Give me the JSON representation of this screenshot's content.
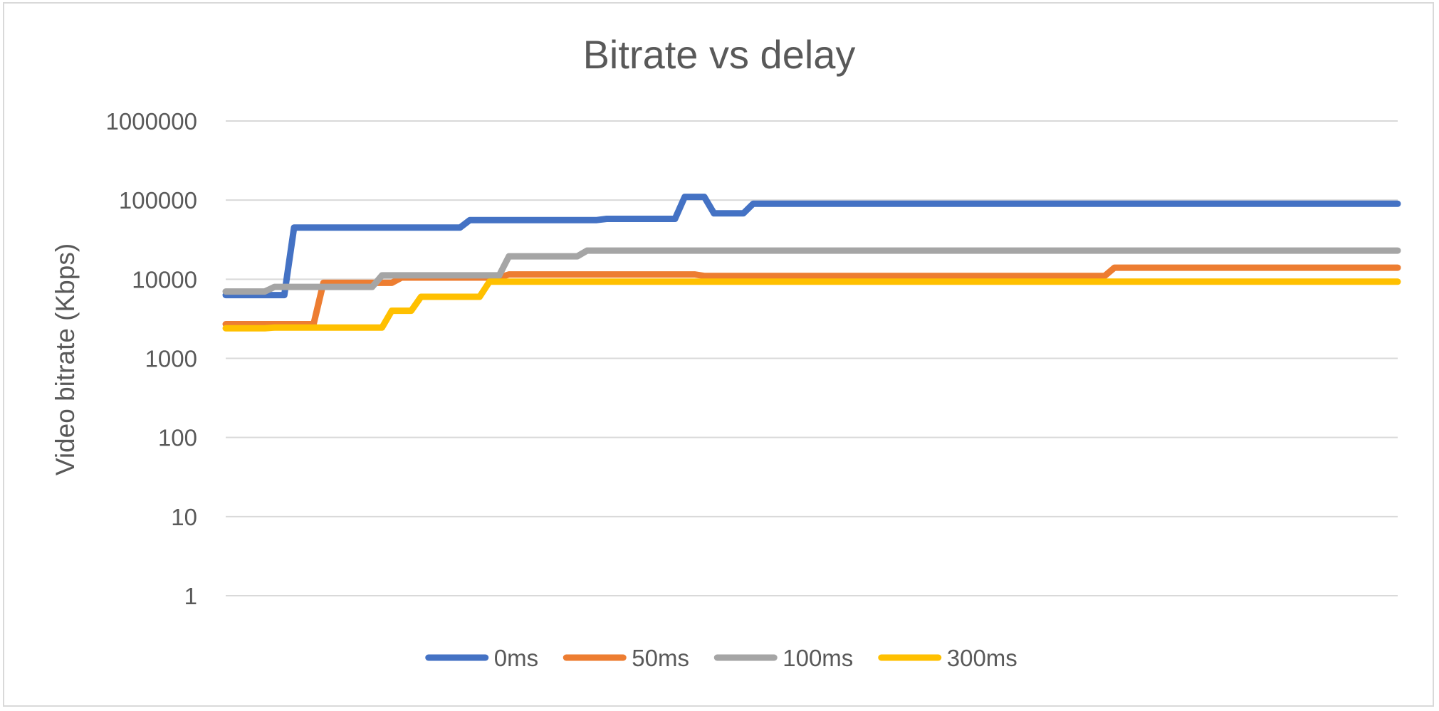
{
  "chart_data": {
    "type": "line",
    "title": "Bitrate vs delay",
    "xlabel": "",
    "ylabel": "Video bitrate (Kbps)",
    "y_scale": "log",
    "ylim": [
      1,
      1000000
    ],
    "y_ticks": [
      "1",
      "10",
      "100",
      "1000",
      "10000",
      "100000",
      "1000000"
    ],
    "x_axis_labels": "none",
    "grid": true,
    "legend_position": "bottom",
    "x": [
      0,
      1,
      2,
      3,
      4,
      5,
      6,
      7,
      8,
      9,
      10,
      11,
      12,
      13,
      14,
      15,
      16,
      17,
      18,
      19,
      20,
      21,
      22,
      23,
      24,
      25,
      26,
      27,
      28,
      29,
      30,
      31,
      32,
      33,
      34,
      35,
      36,
      37,
      38,
      39,
      40,
      41,
      42,
      43,
      44,
      45,
      46,
      47,
      48,
      49,
      50,
      51,
      52,
      53,
      54,
      55,
      56,
      57,
      58,
      59,
      60,
      61,
      62,
      63,
      64,
      65,
      66,
      67,
      68,
      69,
      70,
      71,
      72,
      73,
      74,
      75,
      76,
      77,
      78,
      79,
      80,
      81,
      82,
      83,
      84,
      85,
      86,
      87,
      88,
      89,
      90,
      91,
      92,
      93,
      94,
      95,
      96,
      97,
      98,
      99,
      100,
      101,
      102,
      103,
      104,
      105,
      106,
      107,
      108,
      109,
      110,
      111,
      112,
      113,
      114,
      115,
      116,
      117,
      118,
      119,
      120
    ],
    "series": [
      {
        "name": "0ms",
        "color": "#4472c4",
        "values": [
          6300,
          6300,
          6300,
          6300,
          6300,
          6300,
          6300,
          45000,
          45000,
          45000,
          45000,
          45000,
          45000,
          45000,
          45000,
          45000,
          45000,
          45000,
          45000,
          45000,
          45000,
          45000,
          45000,
          45000,
          45000,
          56000,
          56000,
          56000,
          56000,
          56000,
          56000,
          56000,
          56000,
          56000,
          56000,
          56000,
          56000,
          56000,
          56000,
          58000,
          58000,
          58000,
          58000,
          58000,
          58000,
          58000,
          58000,
          110000,
          110000,
          110000,
          68000,
          68000,
          68000,
          68000,
          90000,
          90000,
          90000,
          90000,
          90000,
          90000,
          90000,
          90000,
          90000,
          90000,
          90000,
          90000,
          90000,
          90000,
          90000,
          90000,
          90000,
          90000,
          90000,
          90000,
          90000,
          90000,
          90000,
          90000,
          90000,
          90000,
          90000,
          90000,
          90000,
          90000,
          90000,
          90000,
          90000,
          90000,
          90000,
          90000,
          90000,
          90000,
          90000,
          90000,
          90000,
          90000,
          90000,
          90000,
          90000,
          90000,
          90000,
          90000,
          90000,
          90000,
          90000,
          90000,
          90000,
          90000,
          90000,
          90000,
          90000,
          90000,
          90000,
          90000,
          90000,
          90000,
          90000,
          90000,
          90000,
          90000,
          90000
        ]
      },
      {
        "name": "50ms",
        "color": "#ed7d31",
        "values": [
          2700,
          2700,
          2700,
          2700,
          2700,
          2700,
          2700,
          2700,
          2700,
          2700,
          9000,
          9000,
          9000,
          9000,
          9000,
          9000,
          9000,
          9000,
          10500,
          10500,
          10500,
          10500,
          10500,
          10500,
          10500,
          10500,
          10500,
          10500,
          10500,
          11500,
          11500,
          11500,
          11500,
          11500,
          11500,
          11500,
          11500,
          11500,
          11500,
          11500,
          11500,
          11500,
          11500,
          11500,
          11500,
          11500,
          11500,
          11500,
          11500,
          11000,
          11000,
          11000,
          11000,
          11000,
          11000,
          11000,
          11000,
          11000,
          11000,
          11000,
          11000,
          11000,
          11000,
          11000,
          11000,
          11000,
          11000,
          11000,
          11000,
          11000,
          11000,
          11000,
          11000,
          11000,
          11000,
          11000,
          11000,
          11000,
          11000,
          11000,
          11000,
          11000,
          11000,
          11000,
          11000,
          11000,
          11000,
          11000,
          11000,
          11000,
          11000,
          14000,
          14000,
          14000,
          14000,
          14000,
          14000,
          14000,
          14000,
          14000,
          14000,
          14000,
          14000,
          14000,
          14000,
          14000,
          14000,
          14000,
          14000,
          14000,
          14000,
          14000,
          14000,
          14000,
          14000,
          14000,
          14000,
          14000,
          14000,
          14000,
          14000
        ]
      },
      {
        "name": "100ms",
        "color": "#a5a5a5",
        "values": [
          7000,
          7000,
          7000,
          7000,
          7000,
          8000,
          8000,
          8000,
          8000,
          8000,
          8000,
          8000,
          8000,
          8000,
          8000,
          8000,
          11200,
          11200,
          11200,
          11200,
          11200,
          11200,
          11200,
          11200,
          11200,
          11200,
          11200,
          11200,
          11200,
          19500,
          19500,
          19500,
          19500,
          19500,
          19500,
          19500,
          19500,
          23000,
          23000,
          23000,
          23000,
          23000,
          23000,
          23000,
          23000,
          23000,
          23000,
          23000,
          23000,
          23000,
          23000,
          23000,
          23000,
          23000,
          23000,
          23000,
          23000,
          23000,
          23000,
          23000,
          23000,
          23000,
          23000,
          23000,
          23000,
          23000,
          23000,
          23000,
          23000,
          23000,
          23000,
          23000,
          23000,
          23000,
          23000,
          23000,
          23000,
          23000,
          23000,
          23000,
          23000,
          23000,
          23000,
          23000,
          23000,
          23000,
          23000,
          23000,
          23000,
          23000,
          23000,
          23000,
          23000,
          23000,
          23000,
          23000,
          23000,
          23000,
          23000,
          23000,
          23000,
          23000,
          23000,
          23000,
          23000,
          23000,
          23000,
          23000,
          23000,
          23000,
          23000,
          23000,
          23000,
          23000,
          23000,
          23000,
          23000,
          23000,
          23000,
          23000,
          23000
        ]
      },
      {
        "name": "300ms",
        "color": "#ffc000",
        "values": [
          2400,
          2400,
          2400,
          2400,
          2400,
          2450,
          2450,
          2450,
          2450,
          2450,
          2450,
          2450,
          2450,
          2450,
          2450,
          2450,
          2450,
          4000,
          4000,
          4000,
          6000,
          6000,
          6000,
          6000,
          6000,
          6000,
          6000,
          9300,
          9300,
          9300,
          9300,
          9300,
          9300,
          9300,
          9300,
          9300,
          9300,
          9300,
          9300,
          9300,
          9300,
          9300,
          9300,
          9300,
          9300,
          9300,
          9300,
          9300,
          9300,
          9300,
          9300,
          9300,
          9300,
          9300,
          9300,
          9300,
          9300,
          9300,
          9300,
          9300,
          9300,
          9300,
          9300,
          9300,
          9300,
          9300,
          9300,
          9300,
          9300,
          9300,
          9300,
          9300,
          9300,
          9300,
          9300,
          9300,
          9300,
          9300,
          9300,
          9300,
          9300,
          9300,
          9300,
          9300,
          9300,
          9300,
          9300,
          9300,
          9300,
          9300,
          9300,
          9300,
          9300,
          9300,
          9300,
          9300,
          9300,
          9300,
          9300,
          9300,
          9300,
          9300,
          9300,
          9300,
          9300,
          9300,
          9300,
          9300,
          9300,
          9300,
          9300,
          9300,
          9300,
          9300,
          9300,
          9300,
          9300,
          9300,
          9300,
          9300,
          9300
        ]
      }
    ]
  }
}
